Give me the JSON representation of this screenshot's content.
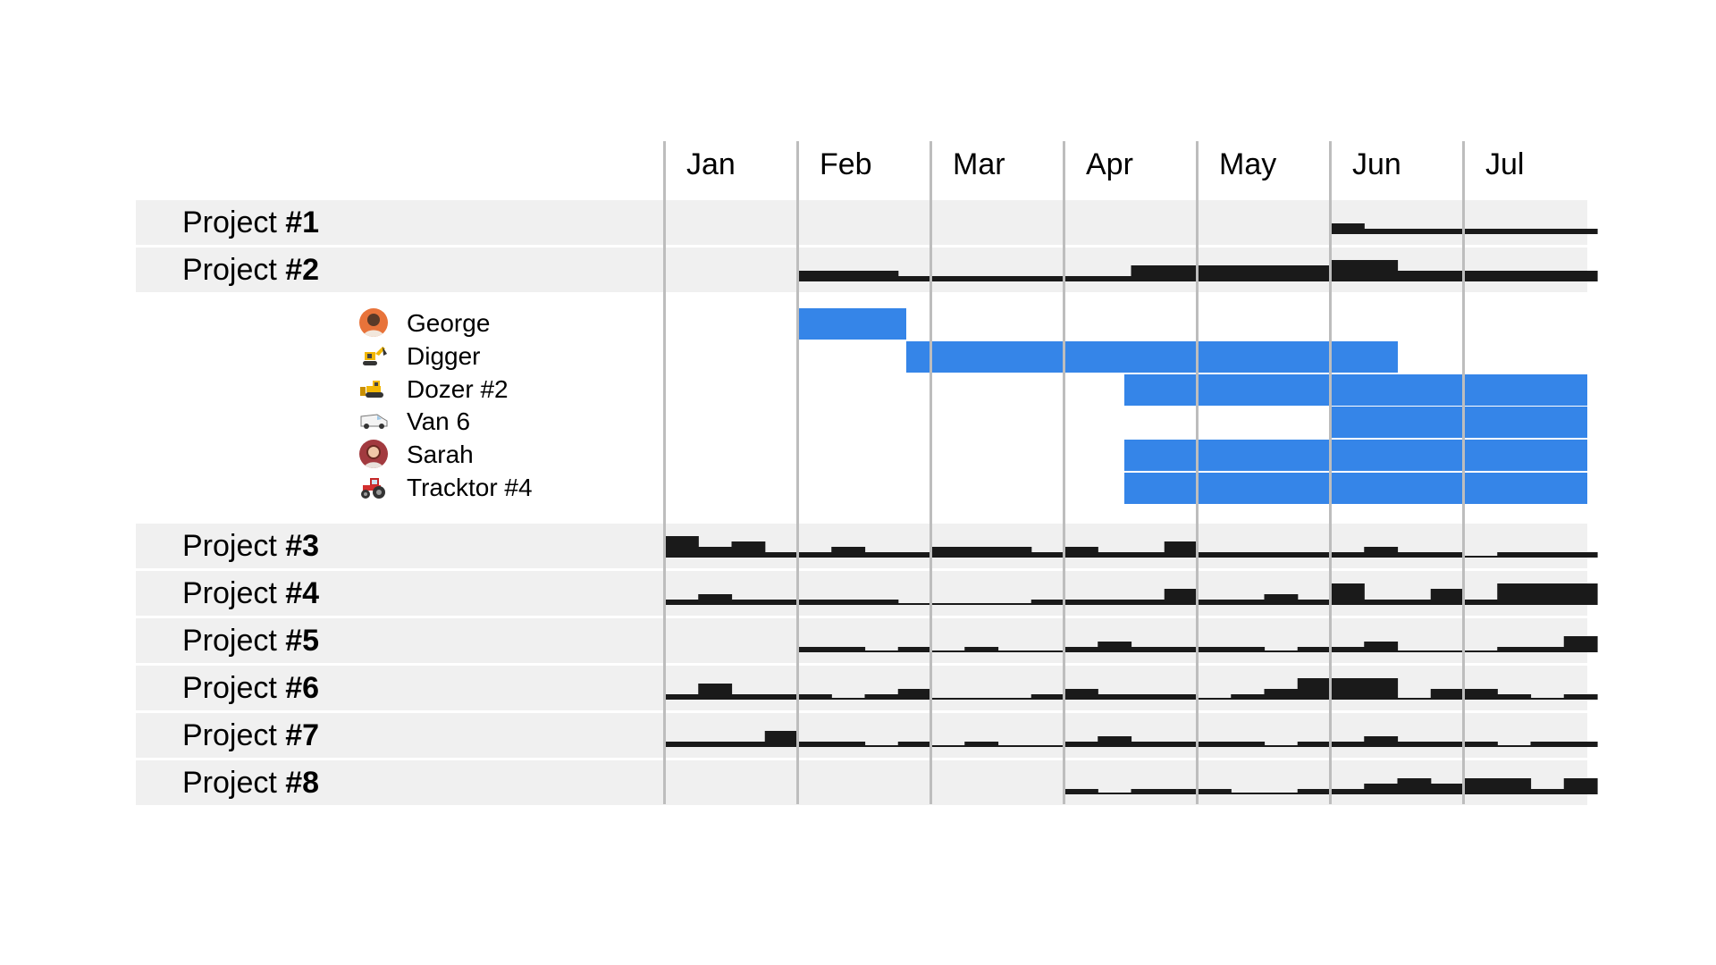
{
  "timeline": {
    "months": [
      "Jan",
      "Feb",
      "Mar",
      "Apr",
      "May",
      "Jun",
      "Jul"
    ],
    "weeks_per_month": 4
  },
  "colors": {
    "row_background": "#f0f0f0",
    "gridline": "#bdbdbd",
    "assignment_bar": "#3585e8",
    "load_fill": "#1a1a1a"
  },
  "projects": [
    {
      "prefix": "Project ",
      "number": "#1",
      "load": [
        0,
        0,
        0,
        0,
        0,
        0,
        0,
        0,
        0,
        0,
        0,
        0,
        0,
        0,
        0,
        0,
        0,
        0,
        0,
        0,
        2,
        1,
        1,
        1,
        1,
        1,
        1,
        1
      ],
      "active": [
        0,
        0,
        0,
        0,
        0,
        0,
        0,
        0,
        0,
        0,
        0,
        0,
        0,
        0,
        0,
        0,
        0,
        0,
        0,
        0,
        1,
        1,
        1,
        1,
        1,
        1,
        1,
        1
      ]
    },
    {
      "prefix": "Project ",
      "number": "#2",
      "load": [
        0,
        0,
        0,
        0,
        2,
        2,
        2,
        1,
        1,
        1,
        1,
        1,
        1,
        1,
        3,
        3,
        3,
        3,
        3,
        3,
        4,
        4,
        2,
        2,
        2,
        2,
        2,
        2
      ],
      "active": [
        0,
        0,
        0,
        0,
        1,
        1,
        1,
        1,
        1,
        1,
        1,
        1,
        1,
        1,
        1,
        1,
        1,
        1,
        1,
        1,
        1,
        1,
        1,
        1,
        1,
        1,
        1,
        1
      ]
    },
    {
      "prefix": "Project ",
      "number": "#3",
      "load": [
        4,
        2,
        3,
        1,
        1,
        2,
        1,
        1,
        2,
        2,
        2,
        1,
        2,
        1,
        1,
        3,
        1,
        1,
        1,
        1,
        1,
        2,
        1,
        1,
        0,
        1,
        1,
        1
      ],
      "active": [
        1,
        1,
        1,
        1,
        1,
        1,
        1,
        1,
        1,
        1,
        1,
        1,
        1,
        1,
        1,
        1,
        1,
        1,
        1,
        1,
        1,
        1,
        1,
        1,
        1,
        1,
        1,
        1
      ]
    },
    {
      "prefix": "Project ",
      "number": "#4",
      "load": [
        1,
        2,
        1,
        1,
        1,
        1,
        1,
        0,
        0,
        0,
        0,
        1,
        1,
        1,
        1,
        3,
        1,
        1,
        2,
        1,
        4,
        1,
        1,
        3,
        1,
        4,
        4,
        4
      ],
      "active": [
        1,
        1,
        1,
        1,
        1,
        1,
        1,
        1,
        1,
        1,
        1,
        1,
        1,
        1,
        1,
        1,
        1,
        1,
        1,
        1,
        1,
        1,
        1,
        1,
        1,
        1,
        1,
        1
      ]
    },
    {
      "prefix": "Project ",
      "number": "#5",
      "load": [
        0,
        0,
        0,
        0,
        1,
        1,
        0,
        1,
        0,
        1,
        0,
        0,
        1,
        2,
        1,
        1,
        1,
        1,
        0,
        1,
        1,
        2,
        0,
        0,
        0,
        1,
        1,
        3
      ],
      "active": [
        0,
        0,
        0,
        0,
        1,
        1,
        1,
        1,
        1,
        1,
        1,
        1,
        1,
        1,
        1,
        1,
        1,
        1,
        1,
        1,
        1,
        1,
        1,
        1,
        1,
        1,
        1,
        1
      ]
    },
    {
      "prefix": "Project ",
      "number": "#6",
      "load": [
        1,
        3,
        1,
        1,
        1,
        0,
        1,
        2,
        0,
        0,
        0,
        1,
        2,
        1,
        1,
        1,
        0,
        1,
        2,
        4,
        4,
        4,
        0,
        2,
        2,
        1,
        0,
        1
      ],
      "active": [
        1,
        1,
        1,
        1,
        1,
        1,
        1,
        1,
        1,
        1,
        1,
        1,
        1,
        1,
        1,
        1,
        1,
        1,
        1,
        1,
        1,
        1,
        1,
        1,
        1,
        1,
        1,
        1
      ]
    },
    {
      "prefix": "Project ",
      "number": "#7",
      "load": [
        1,
        1,
        1,
        3,
        1,
        1,
        0,
        1,
        0,
        1,
        0,
        0,
        1,
        2,
        1,
        1,
        1,
        1,
        0,
        1,
        1,
        2,
        1,
        1,
        1,
        0,
        1,
        1
      ],
      "active": [
        1,
        1,
        1,
        1,
        1,
        1,
        1,
        1,
        1,
        1,
        1,
        1,
        1,
        1,
        1,
        1,
        1,
        1,
        1,
        1,
        1,
        1,
        1,
        1,
        1,
        1,
        1,
        1
      ]
    },
    {
      "prefix": "Project ",
      "number": "#8",
      "load": [
        0,
        0,
        0,
        0,
        0,
        0,
        0,
        0,
        0,
        0,
        0,
        0,
        1,
        0,
        1,
        1,
        1,
        0,
        0,
        1,
        1,
        2,
        3,
        2,
        3,
        3,
        1,
        3
      ],
      "active": [
        0,
        0,
        0,
        0,
        0,
        0,
        0,
        0,
        0,
        0,
        0,
        0,
        1,
        1,
        1,
        1,
        1,
        1,
        1,
        1,
        1,
        1,
        1,
        1,
        1,
        1,
        1,
        1
      ]
    }
  ],
  "resources": [
    {
      "label": "George",
      "icon": "person-avatar-icon",
      "start_week": 4,
      "end_week": 7.25
    },
    {
      "label": "Digger",
      "icon": "excavator-icon",
      "start_week": 7.25,
      "end_week": 22
    },
    {
      "label": "Dozer #2",
      "icon": "bulldozer-icon",
      "start_week": 13.8,
      "end_week": 28
    },
    {
      "label": "Van 6",
      "icon": "van-icon",
      "start_week": 20,
      "end_week": 28
    },
    {
      "label": "Sarah",
      "icon": "person-avatar-icon",
      "start_week": 13.8,
      "end_week": 28
    },
    {
      "label": "Tracktor #4",
      "icon": "tractor-icon",
      "start_week": 13.8,
      "end_week": 28
    }
  ]
}
